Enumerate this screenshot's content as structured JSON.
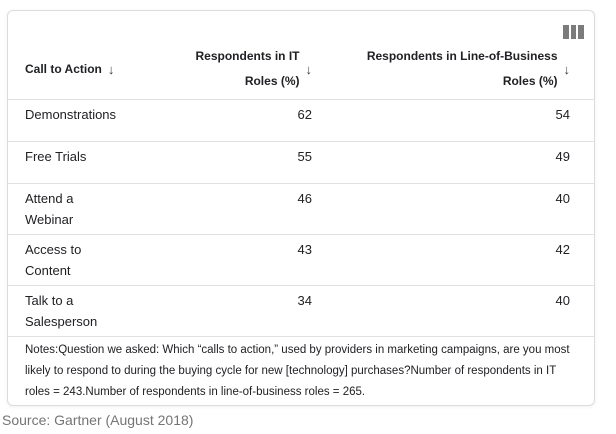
{
  "toolbar": {
    "view_toggle_icon": "table-columns"
  },
  "table": {
    "columns": [
      {
        "label": "Call to Action",
        "sort_icon": "↓"
      },
      {
        "label_line1": "Respondents in IT",
        "label_line2": "Roles (%)",
        "sort_icon": "↓"
      },
      {
        "label_line1": "Respondents in Line-of-Business",
        "label_line2": "Roles (%)",
        "sort_icon": "↓"
      }
    ],
    "rows": [
      {
        "cta": "Demonstrations",
        "it_pct": "62",
        "lob_pct": "54"
      },
      {
        "cta": "Free Trials",
        "it_pct": "55",
        "lob_pct": "49"
      },
      {
        "cta": "Attend a Webinar",
        "it_pct": "46",
        "lob_pct": "40"
      },
      {
        "cta": "Access to Content",
        "it_pct": "43",
        "lob_pct": "42"
      },
      {
        "cta": "Talk to a Salesperson",
        "it_pct": "34",
        "lob_pct": "40"
      }
    ]
  },
  "notes": {
    "text": "Notes:Question we asked: Which “calls to action,” used by providers in marketing campaigns, are you most likely to respond to during the buying cycle for new [technology] purchases?Number of respondents in IT roles = 243.Number of respondents in line-of-business roles = 265."
  },
  "source": {
    "text": "Source: Gartner (August 2018)"
  },
  "colors": {
    "text": "#202124",
    "muted_text": "#757575",
    "card_border": "#dadce0",
    "row_divider": "#e0e0e0",
    "icon": "#7b7b7b",
    "background": "#ffffff"
  },
  "chart_data": {
    "type": "table",
    "title": "",
    "row_label_header": "Call to Action",
    "categories": [
      "Demonstrations",
      "Free Trials",
      "Attend a Webinar",
      "Access to Content",
      "Talk to a Salesperson"
    ],
    "series": [
      {
        "name": "Respondents in IT Roles (%)",
        "values": [
          62,
          55,
          46,
          43,
          34
        ]
      },
      {
        "name": "Respondents in Line-of-Business Roles (%)",
        "values": [
          54,
          49,
          40,
          42,
          40
        ]
      }
    ],
    "n_it_roles": 243,
    "n_lob_roles": 265,
    "sortable_columns": true,
    "source": "Gartner (August 2018)"
  }
}
